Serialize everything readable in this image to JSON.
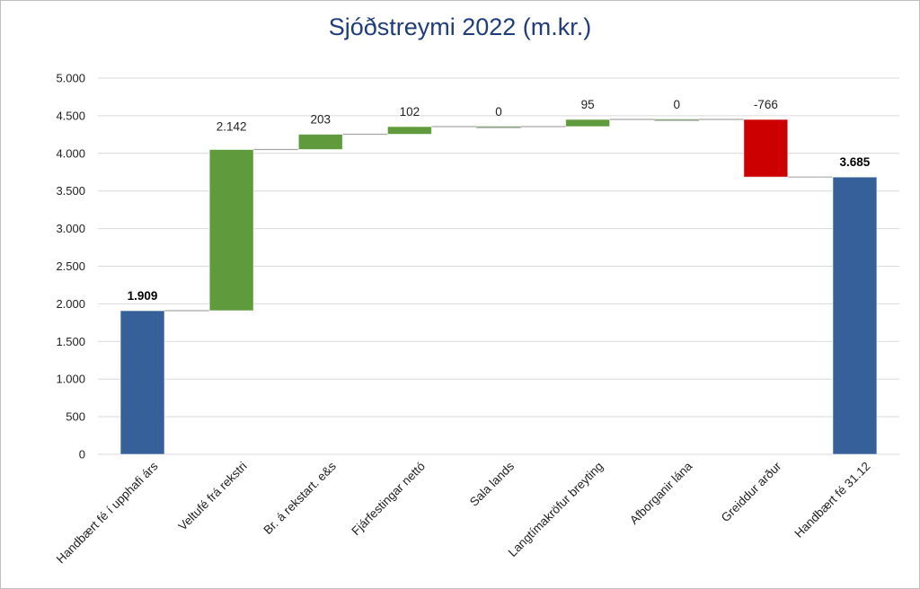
{
  "chart_data": {
    "type": "bar",
    "subtype": "waterfall",
    "title": "Sjóðstreymi 2022 (m.kr.)",
    "xlabel": "",
    "ylabel": "",
    "ylim": [
      0,
      5000
    ],
    "y_ticks": [
      0,
      500,
      1000,
      1500,
      2000,
      2500,
      3000,
      3500,
      4000,
      4500,
      5000
    ],
    "y_tick_labels": [
      "0",
      "500",
      "1.000",
      "1.500",
      "2.000",
      "2.500",
      "3.000",
      "3.500",
      "4.000",
      "4.500",
      "5.000"
    ],
    "grid": true,
    "legend": "none",
    "colors": {
      "total": "#36609a",
      "increase": "#5f9a3c",
      "decrease": "#cc0000",
      "connector": "#a6a6a6",
      "title": "#1f3d7a"
    },
    "categories": [
      "Handbært fé í upphafi árs",
      "Veltufé frá rekstri",
      "Br. á rekstart. e&s",
      "Fjárfestingar nettó",
      "Sala lands",
      "Langtímakröfur breyting",
      "Afborganir lána",
      "Greiddur arður",
      "Handbært fé 31.12"
    ],
    "values": [
      1909,
      2142,
      203,
      102,
      0,
      95,
      0,
      -766,
      3685
    ],
    "kinds": [
      "total",
      "delta",
      "delta",
      "delta",
      "delta",
      "delta",
      "delta",
      "delta",
      "total"
    ],
    "data_labels": [
      "1.909",
      "2.142",
      "203",
      "102",
      "0",
      "95",
      "0",
      "-766",
      "3.685"
    ]
  }
}
